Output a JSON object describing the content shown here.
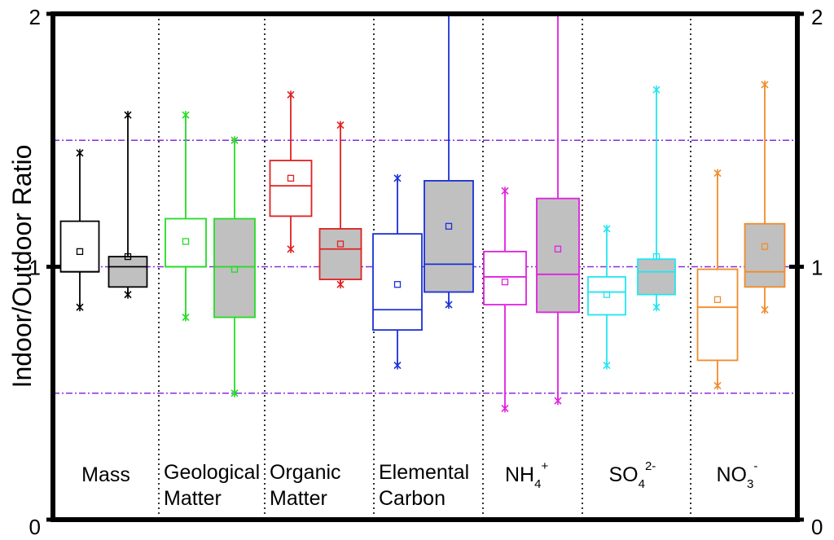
{
  "chart_data": {
    "type": "boxplot",
    "ylabel": "Indoor/Outdoor Ratio",
    "ylim": [
      0,
      2
    ],
    "left_ticks": [
      "0",
      "1",
      "2"
    ],
    "right_ticks": [
      "0",
      "1",
      "2"
    ],
    "reference_lines": [
      0.5,
      1.0,
      1.5
    ],
    "reference_color": "#8a2be2",
    "groups": [
      {
        "name": "Mass",
        "label_lines": [
          "Mass"
        ],
        "color": "#000000",
        "boxes": [
          {
            "filled": false,
            "q1": 0.98,
            "median": 0.98,
            "q3": 1.18,
            "mean": 1.06,
            "whisker_low": 0.84,
            "whisker_high": 1.45
          },
          {
            "filled": true,
            "q1": 0.92,
            "median": 1.0,
            "q3": 1.04,
            "mean": 1.04,
            "whisker_low": 0.89,
            "whisker_high": 1.6
          }
        ]
      },
      {
        "name": "Geological Matter",
        "label_lines": [
          "Geological",
          "Matter"
        ],
        "color": "#22dd22",
        "boxes": [
          {
            "filled": false,
            "q1": 1.0,
            "median": 1.0,
            "q3": 1.19,
            "mean": 1.1,
            "whisker_low": 0.8,
            "whisker_high": 1.6
          },
          {
            "filled": true,
            "q1": 0.8,
            "median": 1.0,
            "q3": 1.19,
            "mean": 0.99,
            "whisker_low": 0.5,
            "whisker_high": 1.5
          }
        ]
      },
      {
        "name": "Organic Matter",
        "label_lines": [
          "Organic",
          "Matter"
        ],
        "color": "#e02020",
        "boxes": [
          {
            "filled": false,
            "q1": 1.2,
            "median": 1.32,
            "q3": 1.42,
            "mean": 1.35,
            "whisker_low": 1.07,
            "whisker_high": 1.68
          },
          {
            "filled": true,
            "q1": 0.95,
            "median": 1.07,
            "q3": 1.15,
            "mean": 1.09,
            "whisker_low": 0.93,
            "whisker_high": 1.56
          }
        ]
      },
      {
        "name": "Elemental Carbon",
        "label_lines": [
          "Elemental",
          "Carbon"
        ],
        "color": "#1a2fd6",
        "boxes": [
          {
            "filled": false,
            "q1": 0.75,
            "median": 0.83,
            "q3": 1.13,
            "mean": 0.93,
            "whisker_low": 0.61,
            "whisker_high": 1.35
          },
          {
            "filled": true,
            "q1": 0.9,
            "median": 1.01,
            "q3": 1.34,
            "mean": 1.16,
            "whisker_low": 0.85,
            "whisker_high": 2.0
          }
        ]
      },
      {
        "name": "NH4+",
        "label_lines": [
          "NH"
        ],
        "label_sub": "4",
        "label_sup": "+",
        "color": "#e020e0",
        "boxes": [
          {
            "filled": false,
            "q1": 0.85,
            "median": 0.96,
            "q3": 1.06,
            "mean": 0.94,
            "whisker_low": 0.44,
            "whisker_high": 1.3
          },
          {
            "filled": true,
            "q1": 0.82,
            "median": 0.97,
            "q3": 1.27,
            "mean": 1.07,
            "whisker_low": 0.47,
            "whisker_high": 2.0
          }
        ]
      },
      {
        "name": "SO4 2-",
        "label_lines": [
          "SO"
        ],
        "label_sub": "4",
        "label_sup": "2-",
        "color": "#22e5f0",
        "boxes": [
          {
            "filled": false,
            "q1": 0.81,
            "median": 0.9,
            "q3": 0.96,
            "mean": 0.89,
            "whisker_low": 0.61,
            "whisker_high": 1.15
          },
          {
            "filled": true,
            "q1": 0.89,
            "median": 0.98,
            "q3": 1.03,
            "mean": 1.04,
            "whisker_low": 0.84,
            "whisker_high": 1.7
          }
        ]
      },
      {
        "name": "NO3 -",
        "label_lines": [
          "NO"
        ],
        "label_sub": "3",
        "label_sup": "-",
        "color": "#f08c2a",
        "boxes": [
          {
            "filled": false,
            "q1": 0.63,
            "median": 0.84,
            "q3": 0.99,
            "mean": 0.87,
            "whisker_low": 0.53,
            "whisker_high": 1.37
          },
          {
            "filled": true,
            "q1": 0.92,
            "median": 0.98,
            "q3": 1.17,
            "mean": 1.08,
            "whisker_low": 0.83,
            "whisker_high": 1.72
          }
        ]
      }
    ]
  }
}
